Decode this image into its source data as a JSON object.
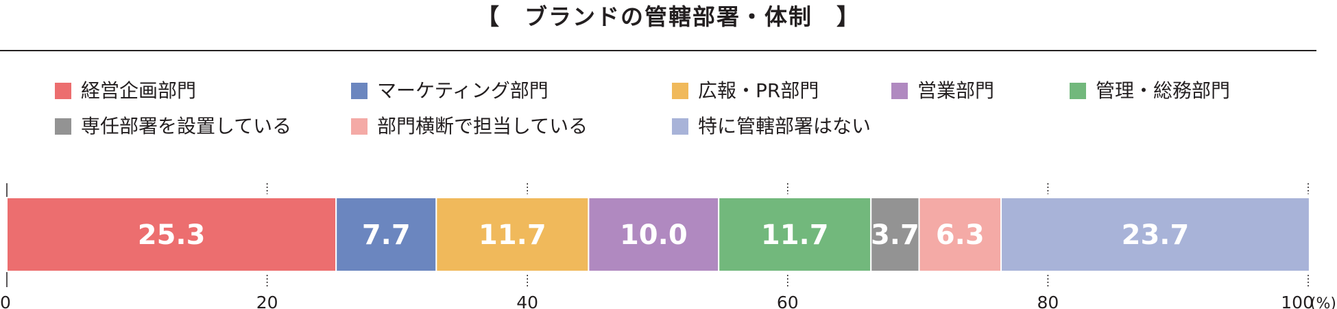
{
  "header": {
    "title": "【　ブランドの管轄部署・体制　】"
  },
  "chart_data": {
    "type": "bar",
    "orientation": "horizontal-stacked-100",
    "title": "【　ブランドの管轄部署・体制　】",
    "xlim": [
      0,
      100
    ],
    "x_ticks": [
      "0",
      "20",
      "40",
      "60",
      "80",
      "100"
    ],
    "x_unit": "(%)",
    "grid": "dotted vertical at 20% steps",
    "legend_position": "top",
    "series": [
      {
        "name": "経営企画部門",
        "value": 25.3,
        "label": "25.3",
        "color": "#ec6e6f"
      },
      {
        "name": "マーケティング部門",
        "value": 7.7,
        "label": "7.7",
        "color": "#6b86bf"
      },
      {
        "name": "広報・PR部門",
        "value": 11.7,
        "label": "11.7",
        "color": "#f0b95b"
      },
      {
        "name": "営業部門",
        "value": 10.0,
        "label": "10.0",
        "color": "#b089c0"
      },
      {
        "name": "管理・総務部門",
        "value": 11.7,
        "label": "11.7",
        "color": "#72b87c"
      },
      {
        "name": "専任部署を設置している",
        "value": 3.7,
        "label": "3.7",
        "color": "#939393"
      },
      {
        "name": "部門横断で担当している",
        "value": 6.3,
        "label": "6.3",
        "color": "#f4aaa6"
      },
      {
        "name": "特に管轄部署はない",
        "value": 23.7,
        "label": "23.7",
        "color": "#a8b3d8"
      }
    ]
  }
}
